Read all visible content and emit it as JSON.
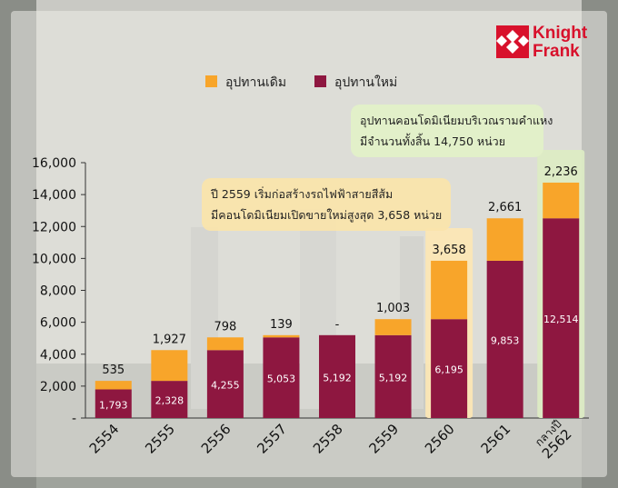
{
  "legend": {
    "items": [
      {
        "label": "อุปทานเดิม",
        "color": "#f8a52a"
      },
      {
        "label": "อุปทานใหม่",
        "color": "#8e1740"
      }
    ]
  },
  "logo": {
    "line1": "Knight",
    "line2": "Frank",
    "color": "#d8112c"
  },
  "callouts": {
    "c1": {
      "line1": "ปี 2559 เริ่มก่อสร้างรถไฟฟ้าสายสีส้ม",
      "line2": "มีคอนโดมิเนียมเปิดขายใหม่สูงสุด 3,658 หน่วย"
    },
    "c2": {
      "line1": "อุปทานคอนโดมิเนียมบริเวณรามคำแหง",
      "line2": "มีจำนวนทั้งสิ้น 14,750 หน่วย"
    }
  },
  "chart_data": {
    "type": "bar",
    "stacked": true,
    "categories": [
      "2554",
      "2555",
      "2556",
      "2557",
      "2558",
      "2559",
      "2560",
      "2561",
      "กลางปี 2562"
    ],
    "series": [
      {
        "name": "อุปทานใหม่",
        "color": "#8e1740",
        "values": [
          1793,
          2328,
          4255,
          5053,
          5192,
          5192,
          6195,
          9853,
          12514
        ]
      },
      {
        "name": "อุปทานเดิม",
        "color": "#f8a52a",
        "values": [
          535,
          1927,
          798,
          139,
          0,
          1003,
          3658,
          2661,
          2236
        ]
      }
    ],
    "top_labels": [
      "535",
      "1,927",
      "798",
      "139",
      "-",
      "1,003",
      "3,658",
      "2,661",
      "2,236"
    ],
    "inner_labels": [
      "1,793",
      "2,328",
      "4,255",
      "5,053",
      "5,192",
      "5,192",
      "6,195",
      "9,853",
      "12,514"
    ],
    "yticks": [
      "-",
      "2,000",
      "4,000",
      "6,000",
      "8,000",
      "10,000",
      "12,000",
      "14,000",
      "16,000"
    ],
    "ylim": [
      0,
      16000
    ],
    "highlighted_categories": [
      "2560",
      "กลางปี 2562"
    ],
    "highlight_colors": {
      "2560": "#fbe6b5",
      "กลางปี 2562": "#dcebc4"
    }
  }
}
